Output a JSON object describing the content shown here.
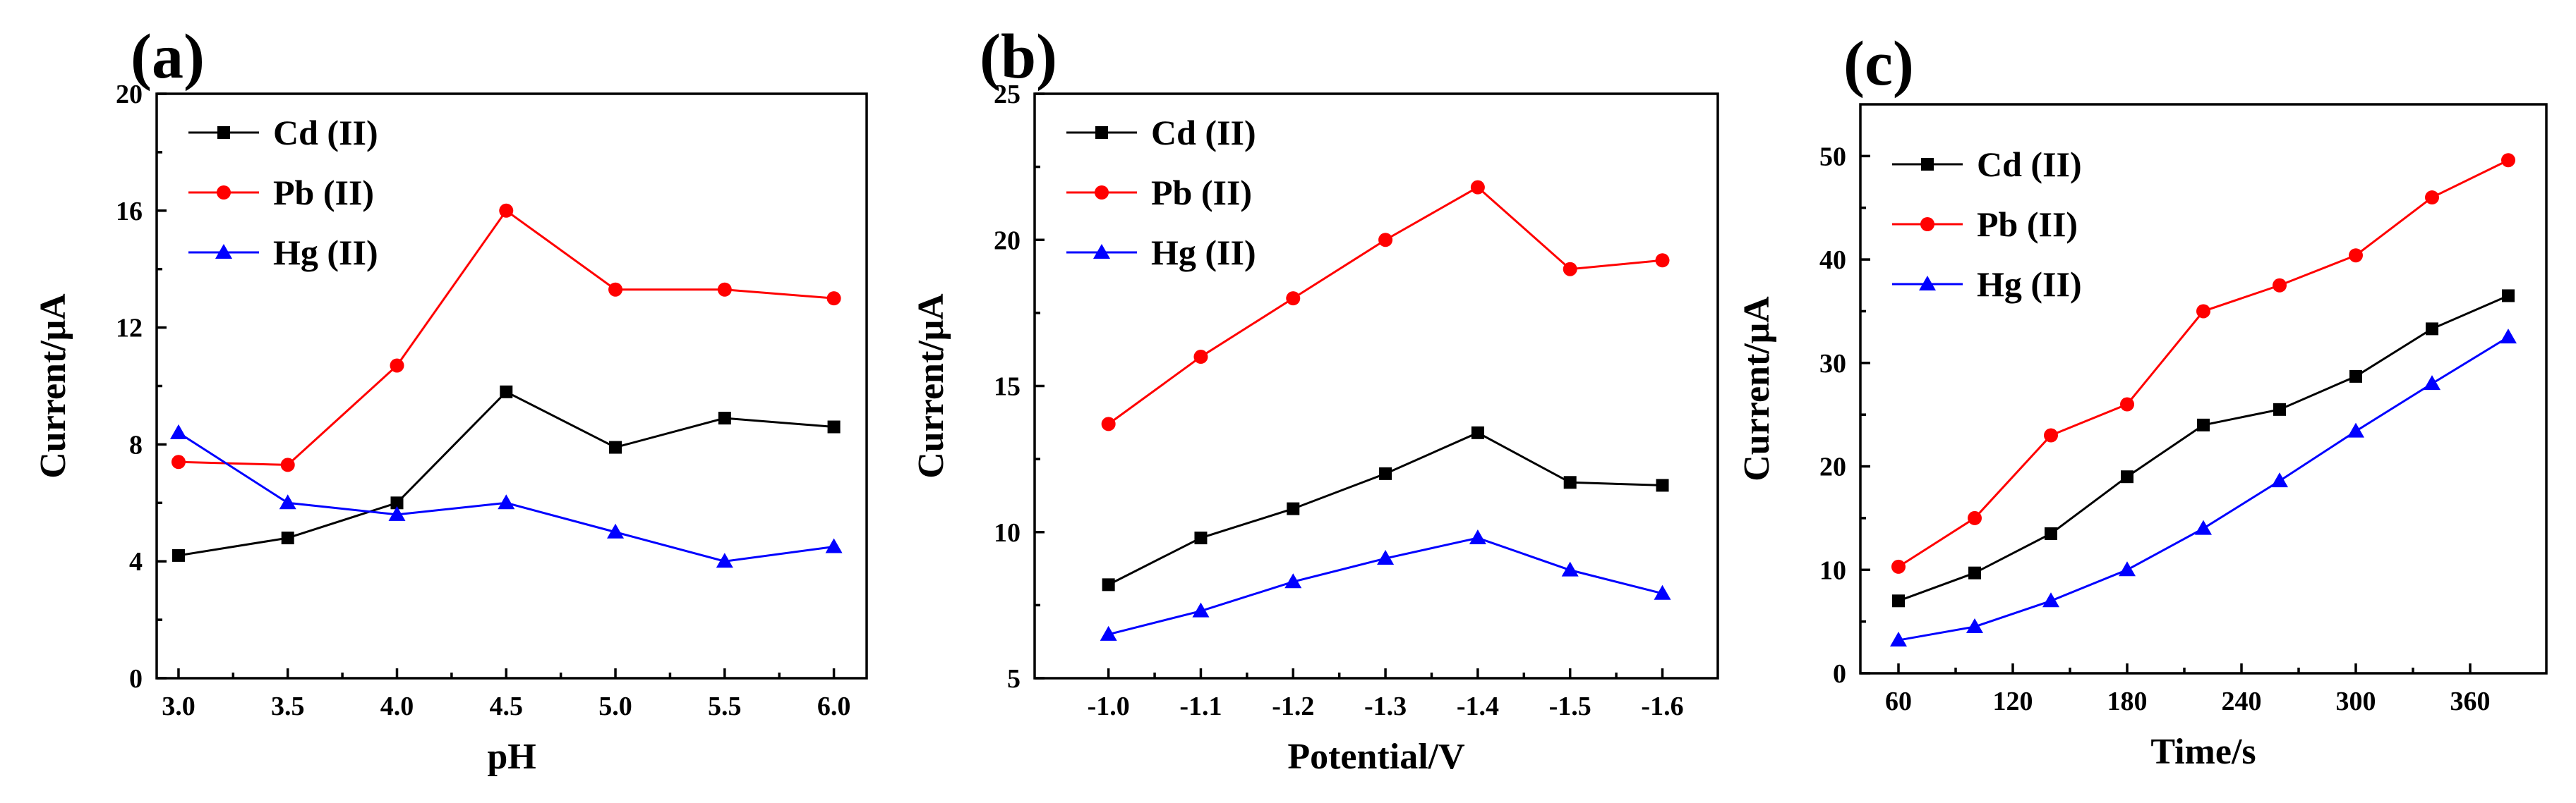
{
  "colors": {
    "cd": "#000000",
    "pb": "#ff0000",
    "hg": "#0000ff"
  },
  "chart_data": [
    {
      "type": "line",
      "panel_label": "(a)",
      "xlabel": "pH",
      "ylabel": "Current/μA",
      "x": [
        3.0,
        3.5,
        4.0,
        4.5,
        5.0,
        5.5,
        6.0
      ],
      "xlim": [
        2.9,
        6.15
      ],
      "ylim": [
        0,
        20
      ],
      "xticks": [
        3.0,
        3.5,
        4.0,
        4.5,
        5.0,
        5.5,
        6.0
      ],
      "xtick_labels": [
        "3.0",
        "3.5",
        "4.0",
        "4.5",
        "5.0",
        "5.5",
        "6.0"
      ],
      "yticks": [
        0,
        4,
        8,
        12,
        16,
        20
      ],
      "ytick_labels": [
        "0",
        "4",
        "8",
        "12",
        "16",
        "20"
      ],
      "legend_position": "top-left",
      "series": [
        {
          "name": "Cd (II)",
          "color": "#000000",
          "marker": "square",
          "values": [
            4.2,
            4.8,
            6.0,
            9.8,
            7.9,
            8.9,
            8.6
          ]
        },
        {
          "name": "Pb (II)",
          "color": "#ff0000",
          "marker": "circle",
          "values": [
            7.4,
            7.3,
            10.7,
            16.0,
            13.3,
            13.3,
            13.0
          ]
        },
        {
          "name": "Hg (II)",
          "color": "#0000ff",
          "marker": "triangle",
          "values": [
            8.4,
            6.0,
            5.6,
            6.0,
            5.0,
            4.0,
            4.5
          ]
        }
      ]
    },
    {
      "type": "line",
      "panel_label": "(b)",
      "xlabel": "Potential/V",
      "ylabel": "Current/μA",
      "x": [
        -1.0,
        -1.1,
        -1.2,
        -1.3,
        -1.4,
        -1.5,
        -1.6
      ],
      "xlim": [
        -0.92,
        -1.66
      ],
      "ylim": [
        5,
        25
      ],
      "xticks": [
        -1.0,
        -1.1,
        -1.2,
        -1.3,
        -1.4,
        -1.5,
        -1.6
      ],
      "xtick_labels": [
        "-1.0",
        "-1.1",
        "-1.2",
        "-1.3",
        "-1.4",
        "-1.5",
        "-1.6"
      ],
      "yticks": [
        5,
        10,
        15,
        20,
        25
      ],
      "ytick_labels": [
        "5",
        "10",
        "15",
        "20",
        "25"
      ],
      "legend_position": "top-left",
      "series": [
        {
          "name": "Cd (II)",
          "color": "#000000",
          "marker": "square",
          "values": [
            8.2,
            9.8,
            10.8,
            12.0,
            13.4,
            11.7,
            11.6
          ]
        },
        {
          "name": "Pb (II)",
          "color": "#ff0000",
          "marker": "circle",
          "values": [
            13.7,
            16.0,
            18.0,
            20.0,
            21.8,
            19.0,
            19.3
          ]
        },
        {
          "name": "Hg (II)",
          "color": "#0000ff",
          "marker": "triangle",
          "values": [
            6.5,
            7.3,
            8.3,
            9.1,
            9.8,
            8.7,
            7.9
          ]
        }
      ]
    },
    {
      "type": "line",
      "panel_label": "(c)",
      "xlabel": "Time/s",
      "ylabel": "Current/μA",
      "x": [
        60,
        100,
        140,
        180,
        220,
        260,
        300,
        340,
        380
      ],
      "xlim": [
        40,
        400
      ],
      "ylim": [
        0,
        55
      ],
      "xticks": [
        60,
        120,
        180,
        240,
        300,
        360
      ],
      "xtick_labels": [
        "60",
        "120",
        "180",
        "240",
        "300",
        "360"
      ],
      "yticks": [
        0,
        10,
        20,
        30,
        40,
        50
      ],
      "ytick_labels": [
        "0",
        "10",
        "20",
        "30",
        "40",
        "50"
      ],
      "legend_position": "top-left",
      "series": [
        {
          "name": "Cd (II)",
          "color": "#000000",
          "marker": "square",
          "values": [
            7.0,
            9.7,
            13.5,
            19.0,
            24.0,
            25.5,
            28.7,
            33.3,
            36.5
          ]
        },
        {
          "name": "Pb (II)",
          "color": "#ff0000",
          "marker": "circle",
          "values": [
            10.3,
            15.0,
            23.0,
            26.0,
            35.0,
            37.5,
            40.4,
            46.0,
            49.6
          ]
        },
        {
          "name": "Hg (II)",
          "color": "#0000ff",
          "marker": "triangle",
          "values": [
            3.2,
            4.5,
            7.0,
            10.0,
            14.0,
            18.6,
            23.4,
            28.0,
            32.5
          ]
        }
      ]
    }
  ]
}
